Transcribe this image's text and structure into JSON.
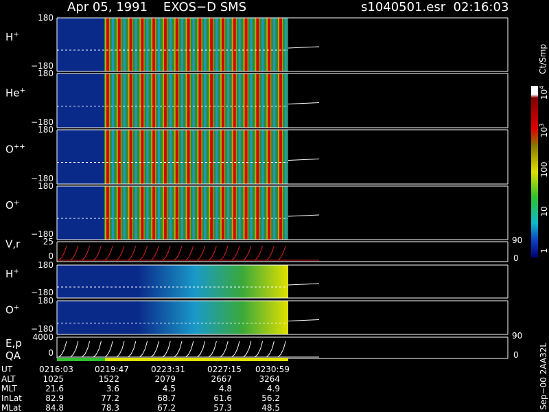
{
  "header": {
    "title": "Apr 05, 1991    EXOS−D SMS",
    "file": "s1040501.esr  02:16:03"
  },
  "panels": [
    {
      "label": "H",
      "sup": "+",
      "top": "180",
      "bottom": "−180"
    },
    {
      "label": "He",
      "sup": "+",
      "top": "180",
      "bottom": "−180"
    },
    {
      "label": "O",
      "sup": "++",
      "top": "180",
      "bottom": "−180"
    },
    {
      "label": "O",
      "sup": "+",
      "top": "180",
      "bottom": "−180"
    },
    {
      "label": "V,r",
      "top": "25",
      "bottom": "0",
      "right_top": "90",
      "right_bottom": "0"
    },
    {
      "label": "H",
      "sup": "+",
      "top": "180",
      "bottom": "−180"
    },
    {
      "label": "O",
      "sup": "+",
      "top": "180",
      "bottom": "−180"
    },
    {
      "label": "E,p",
      "label2": "QA",
      "top": "4000",
      "bottom": "0",
      "right_top": "90",
      "right_bottom": "0"
    }
  ],
  "colorbar": {
    "unit": "Ct/Smp",
    "labels": [
      {
        "base": "10",
        "exp": "4"
      },
      {
        "base": "10",
        "exp": "3"
      },
      {
        "base": "100"
      },
      {
        "base": "10"
      },
      {
        "base": "1"
      }
    ]
  },
  "footer": {
    "row_names": [
      "UT",
      "ALT",
      "MLT",
      "InLat",
      "MLat"
    ],
    "columns": [
      [
        "0216:03",
        "1025",
        "21.6",
        "82.9",
        "84.8"
      ],
      [
        "0219:47",
        "1522",
        "3.6",
        "77.2",
        "78.3"
      ],
      [
        "0223:31",
        "2079",
        "4.5",
        "68.7",
        "67.2"
      ],
      [
        "0227:15",
        "2667",
        "4.8",
        "61.6",
        "57.3"
      ],
      [
        "0230:59",
        "3264",
        "4.9",
        "56.2",
        "48.5"
      ]
    ],
    "stamp": "Sep−00  2AA32L"
  }
}
